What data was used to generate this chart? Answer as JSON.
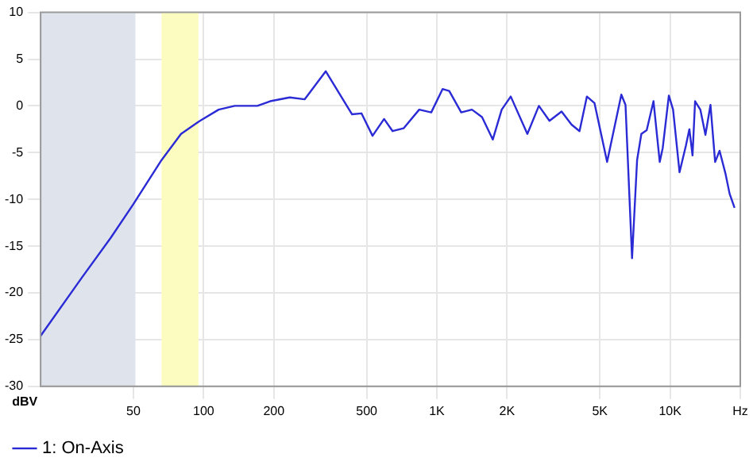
{
  "chart_data": {
    "type": "line",
    "ylabel": "dBV",
    "log": "x",
    "grid": true,
    "legend": "bottom",
    "marker": "none",
    "line_style": "solid",
    "xlim": [
      20,
      20000
    ],
    "ylim": [
      -30,
      10
    ],
    "xticks": [
      50,
      100,
      200,
      500,
      {
        "value": 1000,
        "label": "1K"
      },
      {
        "value": 2000,
        "label": "2K"
      },
      {
        "value": 5000,
        "label": "5K"
      },
      {
        "value": 10000,
        "label": "10K"
      },
      {
        "value": 20000,
        "label": "Hz"
      }
    ],
    "yticks": [
      -30,
      -25,
      -20,
      -15,
      -10,
      -5,
      0,
      5,
      10
    ],
    "bands": [
      {
        "axis": "x",
        "from": 20,
        "to": 51,
        "label": null,
        "color": "#dfe4ec"
      },
      {
        "axis": "x",
        "from": 66,
        "to": 95,
        "label": null,
        "color": "#fdfcc0"
      }
    ],
    "series": [
      {
        "name": "1: On-Axis",
        "color": "#2b2bd6",
        "x": [
          20,
          30,
          40,
          50,
          66,
          80,
          95,
          116,
          136,
          170,
          193,
          234,
          271,
          334,
          433,
          475,
          530,
          594,
          646,
          720,
          840,
          946,
          1058,
          1130,
          1272,
          1414,
          1562,
          1737,
          1897,
          2074,
          2444,
          2738,
          3040,
          3426,
          3780,
          4090,
          4400,
          4740,
          5370,
          6180,
          6440,
          6870,
          7220,
          7530,
          7940,
          8490,
          9030,
          9300,
          9880,
          10300,
          10980,
          11680,
          12100,
          12480,
          12800,
          13480,
          14180,
          14900,
          15600,
          16300,
          17300,
          18000,
          18900
        ],
        "values": [
          -24.6,
          -18.4,
          -14.1,
          -10.5,
          -5.8,
          -3.0,
          -1.7,
          -0.4,
          0,
          0,
          0.5,
          0.9,
          0.7,
          3.7,
          -0.9,
          -0.8,
          -3.2,
          -1.4,
          -2.7,
          -2.4,
          -0.4,
          -0.7,
          1.8,
          1.6,
          -0.7,
          -0.4,
          -1.2,
          -3.6,
          -0.4,
          1.0,
          -3.0,
          0.0,
          -1.6,
          -0.6,
          -2.0,
          -2.7,
          1.0,
          0.3,
          -6.0,
          1.2,
          0.1,
          -16.3,
          -5.8,
          -3.0,
          -2.6,
          0.5,
          -6.0,
          -4.5,
          1.1,
          -0.4,
          -7.1,
          -4.3,
          -2.5,
          -5.3,
          0.5,
          -0.4,
          -3.1,
          0.1,
          -6.0,
          -4.8,
          -7.3,
          -9.4,
          -10.9
        ]
      }
    ]
  }
}
